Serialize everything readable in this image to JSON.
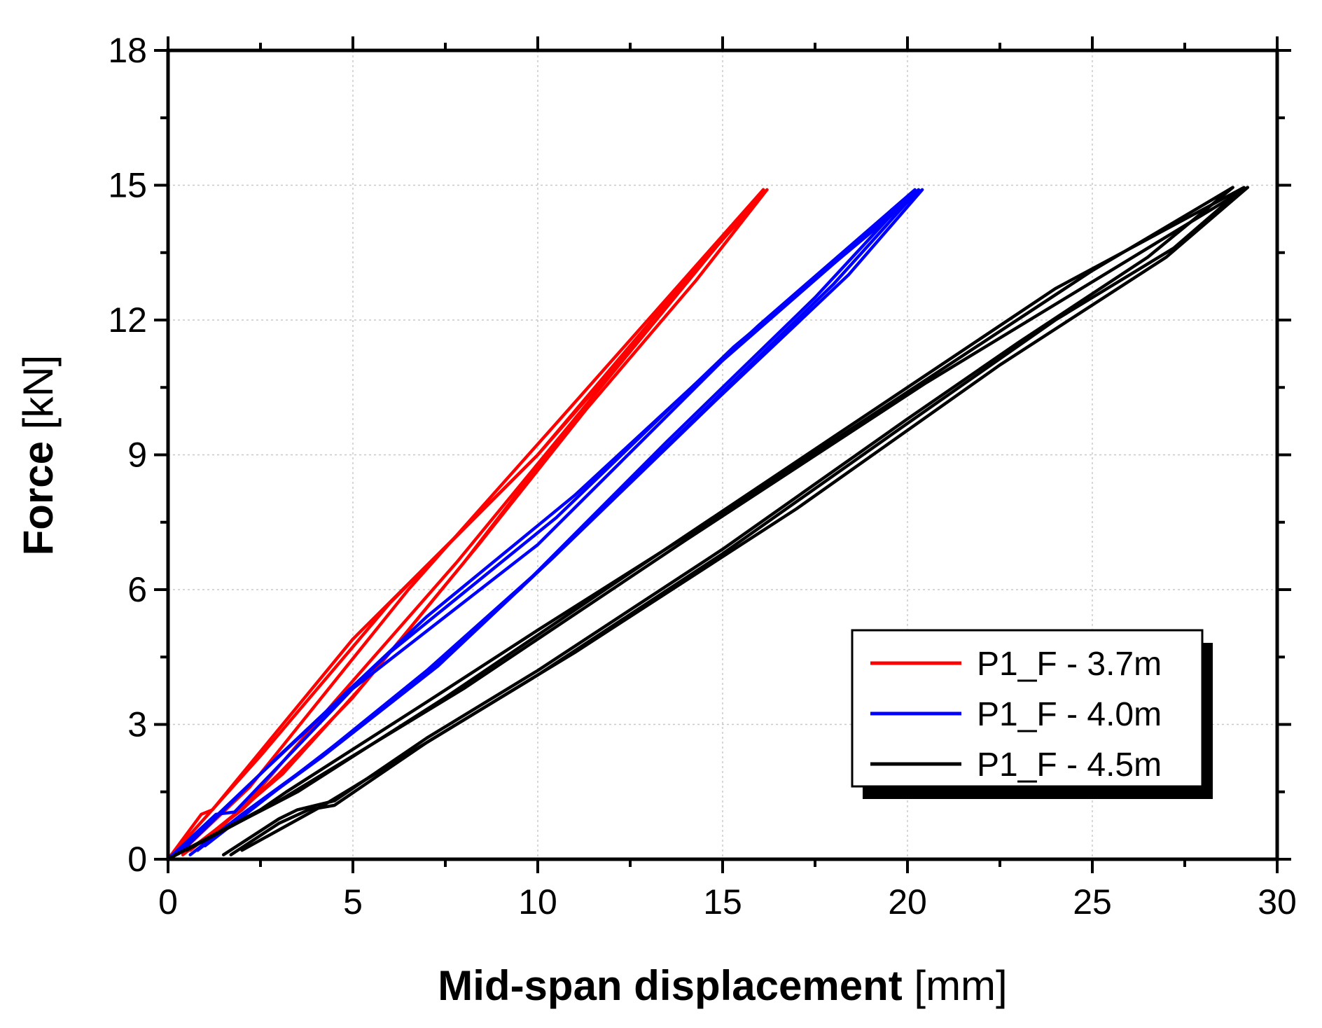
{
  "chart_data": {
    "type": "line",
    "title": "",
    "xlabel_bold": "Mid-span displacement",
    "xlabel_unit": " [mm]",
    "ylabel_bold": "Force",
    "ylabel_unit": " [kN]",
    "xlim": [
      0,
      30
    ],
    "ylim": [
      0,
      18
    ],
    "xticks": [
      0,
      5,
      10,
      15,
      20,
      25,
      30
    ],
    "yticks": [
      0,
      3,
      6,
      9,
      12,
      15,
      18
    ],
    "grid": true,
    "legend_position": "bottom-right",
    "series": [
      {
        "name": "P1_F - 3.7m",
        "color": "#ff0000",
        "loops": [
          [
            [
              0.0,
              0.0
            ],
            [
              0.9,
              1.0
            ],
            [
              1.2,
              1.1
            ],
            [
              5.0,
              4.9
            ],
            [
              10.0,
              9.0
            ],
            [
              13.2,
              12.0
            ],
            [
              16.1,
              14.9
            ],
            [
              14.0,
              12.8
            ],
            [
              11.0,
              9.8
            ],
            [
              8.0,
              6.6
            ],
            [
              5.0,
              3.6
            ],
            [
              3.0,
              1.9
            ],
            [
              2.0,
              1.1
            ],
            [
              0.4,
              0.1
            ]
          ],
          [
            [
              0.0,
              0.0
            ],
            [
              2.5,
              2.3
            ],
            [
              6.0,
              5.7
            ],
            [
              10.0,
              9.0
            ],
            [
              13.5,
              12.4
            ],
            [
              16.2,
              14.9
            ],
            [
              14.3,
              12.9
            ],
            [
              11.3,
              10.0
            ],
            [
              8.4,
              7.0
            ],
            [
              5.3,
              3.9
            ],
            [
              3.1,
              1.9
            ],
            [
              2.1,
              1.2
            ],
            [
              0.6,
              0.2
            ]
          ],
          [
            [
              0.4,
              0.2
            ],
            [
              2.2,
              1.6
            ],
            [
              6.5,
              6.0
            ],
            [
              10.5,
              9.7
            ],
            [
              16.1,
              14.9
            ],
            [
              14.2,
              13.0
            ],
            [
              10.8,
              9.6
            ],
            [
              7.8,
              6.6
            ],
            [
              4.5,
              3.5
            ],
            [
              2.3,
              1.4
            ],
            [
              0.8,
              0.2
            ]
          ]
        ]
      },
      {
        "name": "P1_F - 4.0m",
        "color": "#0000ff",
        "loops": [
          [
            [
              0.0,
              0.0
            ],
            [
              1.3,
              1.0
            ],
            [
              1.8,
              1.05
            ],
            [
              5.0,
              3.8
            ],
            [
              10.0,
              7.0
            ],
            [
              15.0,
              11.1
            ],
            [
              20.3,
              14.9
            ],
            [
              18.0,
              12.8
            ],
            [
              14.5,
              10.0
            ],
            [
              10.0,
              6.4
            ],
            [
              7.0,
              4.2
            ],
            [
              4.0,
              2.2
            ],
            [
              2.0,
              1.0
            ],
            [
              0.6,
              0.1
            ]
          ],
          [
            [
              0.2,
              0.1
            ],
            [
              2.5,
              1.9
            ],
            [
              6.0,
              4.6
            ],
            [
              10.5,
              7.6
            ],
            [
              15.3,
              11.4
            ],
            [
              20.4,
              14.9
            ],
            [
              18.4,
              13.0
            ],
            [
              14.8,
              10.2
            ],
            [
              10.4,
              6.7
            ],
            [
              7.3,
              4.3
            ],
            [
              4.2,
              2.3
            ],
            [
              2.2,
              1.1
            ],
            [
              0.8,
              0.2
            ]
          ],
          [
            [
              0.4,
              0.2
            ],
            [
              3.0,
              2.3
            ],
            [
              7.0,
              5.4
            ],
            [
              11.0,
              8.1
            ],
            [
              16.0,
              11.9
            ],
            [
              20.2,
              14.9
            ],
            [
              17.5,
              12.5
            ],
            [
              13.5,
              9.3
            ],
            [
              9.5,
              6.0
            ],
            [
              6.5,
              3.8
            ],
            [
              3.5,
              1.9
            ],
            [
              1.0,
              0.3
            ]
          ]
        ]
      },
      {
        "name": "P1_F - 4.5m",
        "color": "#000000",
        "loops": [
          [
            [
              0.0,
              0.0
            ],
            [
              2.5,
              1.1
            ],
            [
              3.2,
              1.5
            ],
            [
              7.0,
              3.5
            ],
            [
              10.0,
              5.1
            ],
            [
              15.0,
              7.7
            ],
            [
              20.0,
              10.4
            ],
            [
              25.0,
              13.1
            ],
            [
              28.8,
              14.95
            ],
            [
              26.5,
              13.4
            ],
            [
              23.0,
              11.5
            ],
            [
              20.0,
              9.8
            ],
            [
              15.0,
              6.9
            ],
            [
              10.0,
              4.2
            ],
            [
              7.0,
              2.7
            ],
            [
              4.5,
              1.3
            ],
            [
              3.5,
              1.1
            ],
            [
              3.0,
              0.9
            ],
            [
              1.5,
              0.1
            ]
          ],
          [
            [
              0.2,
              0.1
            ],
            [
              2.8,
              1.2
            ],
            [
              3.5,
              1.5
            ],
            [
              7.5,
              3.6
            ],
            [
              12.0,
              6.1
            ],
            [
              18.0,
              9.4
            ],
            [
              24.0,
              12.7
            ],
            [
              29.1,
              14.95
            ],
            [
              27.2,
              13.6
            ],
            [
              24.0,
              12.0
            ],
            [
              20.0,
              9.7
            ],
            [
              15.0,
              6.8
            ],
            [
              10.0,
              4.1
            ],
            [
              7.0,
              2.6
            ],
            [
              4.5,
              1.2
            ],
            [
              3.8,
              1.1
            ],
            [
              3.0,
              0.8
            ],
            [
              1.7,
              0.1
            ]
          ],
          [
            [
              0.5,
              0.2
            ],
            [
              3.0,
              1.3
            ],
            [
              8.0,
              3.8
            ],
            [
              14.0,
              7.1
            ],
            [
              20.5,
              10.6
            ],
            [
              29.2,
              14.95
            ],
            [
              27.0,
              13.4
            ],
            [
              22.5,
              11.0
            ],
            [
              17.0,
              7.8
            ],
            [
              11.0,
              4.6
            ],
            [
              6.0,
              2.1
            ],
            [
              4.2,
              1.2
            ],
            [
              2.0,
              0.2
            ]
          ]
        ]
      }
    ]
  }
}
